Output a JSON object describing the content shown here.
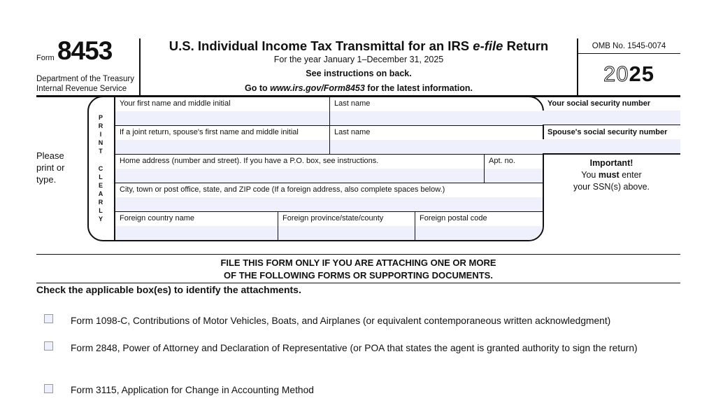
{
  "header": {
    "form_word": "Form",
    "form_number": "8453",
    "dept_line1": "Department of the Treasury",
    "dept_line2": "Internal Revenue Service",
    "title": "U.S. Individual Income Tax Transmittal for an IRS e-file Return",
    "title_pre": "U.S. Individual Income Tax Transmittal for an IRS ",
    "title_italic": "e-file",
    "title_post": " Return",
    "year_line": "For the year January 1–December 31, 2025",
    "instructions_line": "See instructions on back.",
    "goto_pre": "Go to ",
    "goto_url": "www.irs.gov/Form8453",
    "goto_post": " for the latest information.",
    "omb": "OMB No. 1545-0074",
    "tax_year_outline": "20",
    "tax_year_bold": "25"
  },
  "side_note": {
    "please_print": "Please print or type.",
    "print_clearly": "PRINT CLEARLY"
  },
  "fields": {
    "first_name": {
      "label": "Your first name and middle initial",
      "value": ""
    },
    "last_name": {
      "label": "Last name",
      "value": ""
    },
    "spouse_first_name": {
      "label": "If a joint return, spouse's first name and middle initial",
      "value": ""
    },
    "spouse_last_name": {
      "label": "Last name",
      "value": ""
    },
    "home_address": {
      "label": "Home address (number and street). If you have a P.O. box, see instructions.",
      "value": ""
    },
    "apt_no": {
      "label": "Apt. no.",
      "value": ""
    },
    "city": {
      "label": "City, town or post office, state, and ZIP code (If a foreign address, also complete spaces below.)",
      "value": ""
    },
    "foreign_country": {
      "label": "Foreign country name",
      "value": ""
    },
    "foreign_province": {
      "label": "Foreign province/state/county",
      "value": ""
    },
    "foreign_postal": {
      "label": "Foreign postal code",
      "value": ""
    },
    "ssn": {
      "label": "Your social security number",
      "value": ""
    },
    "spouse_ssn": {
      "label": "Spouse's social security number",
      "value": ""
    }
  },
  "important": {
    "heading": "Important!",
    "line1_pre": "You ",
    "line1_bold": "must",
    "line1_post": " enter",
    "line2": "your SSN(s) above."
  },
  "attachments": {
    "notice_line1": "FILE THIS FORM ONLY IF YOU ARE ATTACHING ONE OR MORE",
    "notice_line2": "OF THE FOLLOWING FORMS OR SUPPORTING DOCUMENTS.",
    "instruction": "Check the applicable box(es) to identify the attachments.",
    "items": [
      {
        "label": "Form 1098-C, Contributions of Motor Vehicles, Boats, and Airplanes (or equivalent contemporaneous written acknowledgment)",
        "checked": false
      },
      {
        "label": "Form 2848, Power of Attorney and Declaration of Representative (or POA that states the agent is granted authority to sign the return)",
        "checked": false
      },
      {
        "label": "Form 3115, Application for Change in Accounting Method",
        "checked": false
      }
    ]
  },
  "colors": {
    "field_fill": "#eef0fb",
    "rule": "#111111"
  }
}
